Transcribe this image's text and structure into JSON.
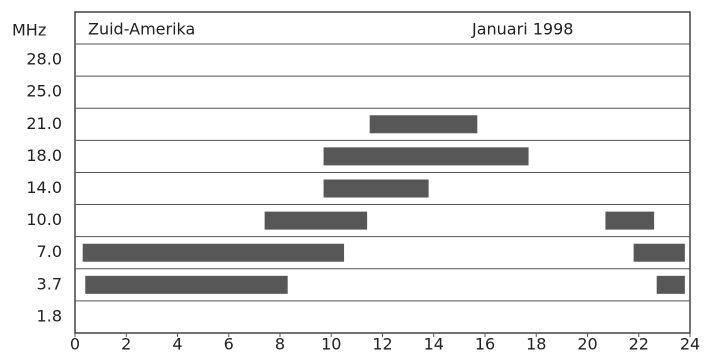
{
  "chart_data": {
    "type": "range",
    "title": "Zuid-Amerika",
    "subtitle": "Januari 1998",
    "y_label": "MHz",
    "categories": [
      "28.0",
      "25.0",
      "21.0",
      "18.0",
      "14.0",
      "10.0",
      "7.0",
      "3.7",
      "1.8"
    ],
    "ranges": [
      [],
      [],
      [
        [
          11.5,
          15.7
        ]
      ],
      [
        [
          9.7,
          17.7
        ]
      ],
      [
        [
          9.7,
          13.8
        ]
      ],
      [
        [
          7.4,
          11.4
        ],
        [
          20.7,
          22.6
        ]
      ],
      [
        [
          0.3,
          10.5
        ],
        [
          21.8,
          23.8
        ]
      ],
      [
        [
          0.4,
          8.3
        ],
        [
          22.7,
          23.8
        ]
      ],
      []
    ],
    "color": "#3a3a3a",
    "xlim": [
      0,
      24
    ],
    "xticks": [
      0,
      2,
      4,
      6,
      8,
      10,
      12,
      14,
      16,
      18,
      20,
      22,
      24
    ],
    "grid": true
  }
}
